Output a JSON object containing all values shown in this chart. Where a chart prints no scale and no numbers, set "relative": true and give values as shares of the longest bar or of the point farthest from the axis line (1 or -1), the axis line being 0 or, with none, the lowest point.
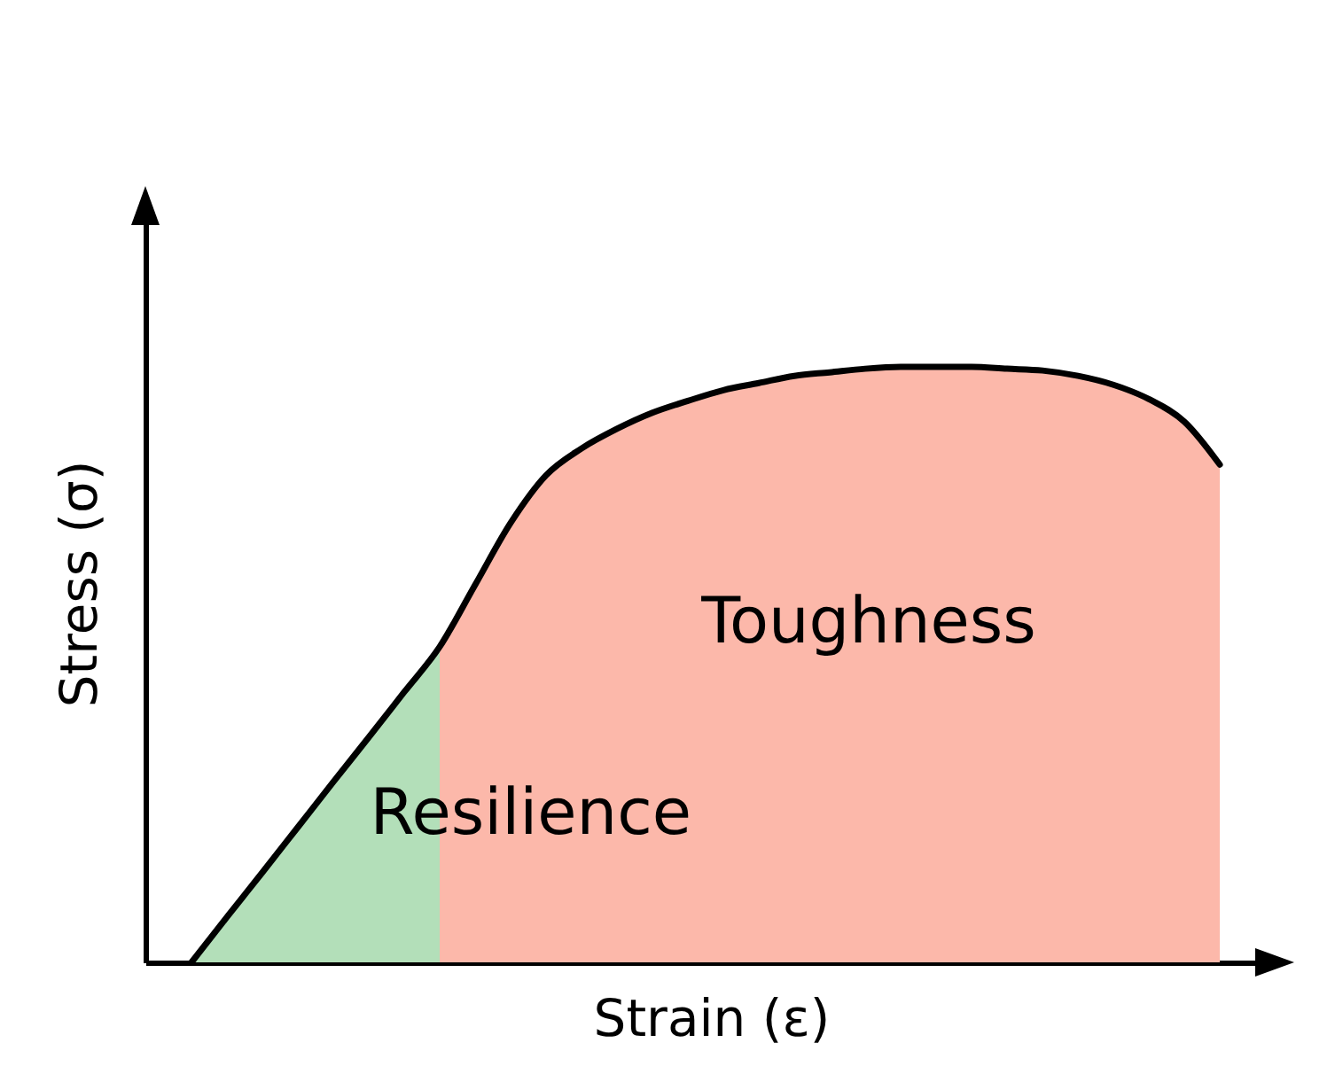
{
  "chart_data": {
    "type": "area",
    "relative": true,
    "xlabel": "Strain (ε)",
    "ylabel": "Stress (σ)",
    "categories": [
      null,
      null,
      null,
      null,
      null,
      null,
      null,
      null,
      null,
      null,
      null,
      null,
      null,
      null,
      null,
      null,
      null,
      null,
      null,
      null,
      null,
      null,
      null,
      null,
      null,
      null,
      null,
      null,
      null,
      null
    ],
    "series": [
      {
        "name": "Resilience",
        "color": "#b3dfb9",
        "values": [
          0,
          0.076,
          0.151,
          0.227,
          0.303,
          0.378,
          0.454,
          0.53,
          null,
          null,
          null,
          null,
          null,
          null,
          null,
          null,
          null,
          null,
          null,
          null,
          null,
          null,
          null,
          null,
          null,
          null,
          null,
          null,
          null,
          null
        ]
      },
      {
        "name": "Toughness",
        "color": "#fcb8aa",
        "values": [
          null,
          null,
          null,
          null,
          null,
          null,
          null,
          0.53,
          0.634,
          0.738,
          0.818,
          0.863,
          0.896,
          0.923,
          0.943,
          0.961,
          0.973,
          0.985,
          0.991,
          0.997,
          1,
          1,
          1,
          0.997,
          0.994,
          0.985,
          0.97,
          0.946,
          0.908,
          0.836
        ]
      },
      {
        "type": "line",
        "color": "#000000",
        "values": [
          0,
          0.076,
          0.151,
          0.227,
          0.303,
          0.378,
          0.454,
          0.53,
          0.634,
          0.738,
          0.818,
          0.863,
          0.896,
          0.923,
          0.943,
          0.961,
          0.973,
          0.985,
          0.991,
          0.997,
          1,
          1,
          1,
          0.997,
          0.994,
          0.985,
          0.97,
          0.946,
          0.908,
          0.836
        ]
      }
    ]
  }
}
